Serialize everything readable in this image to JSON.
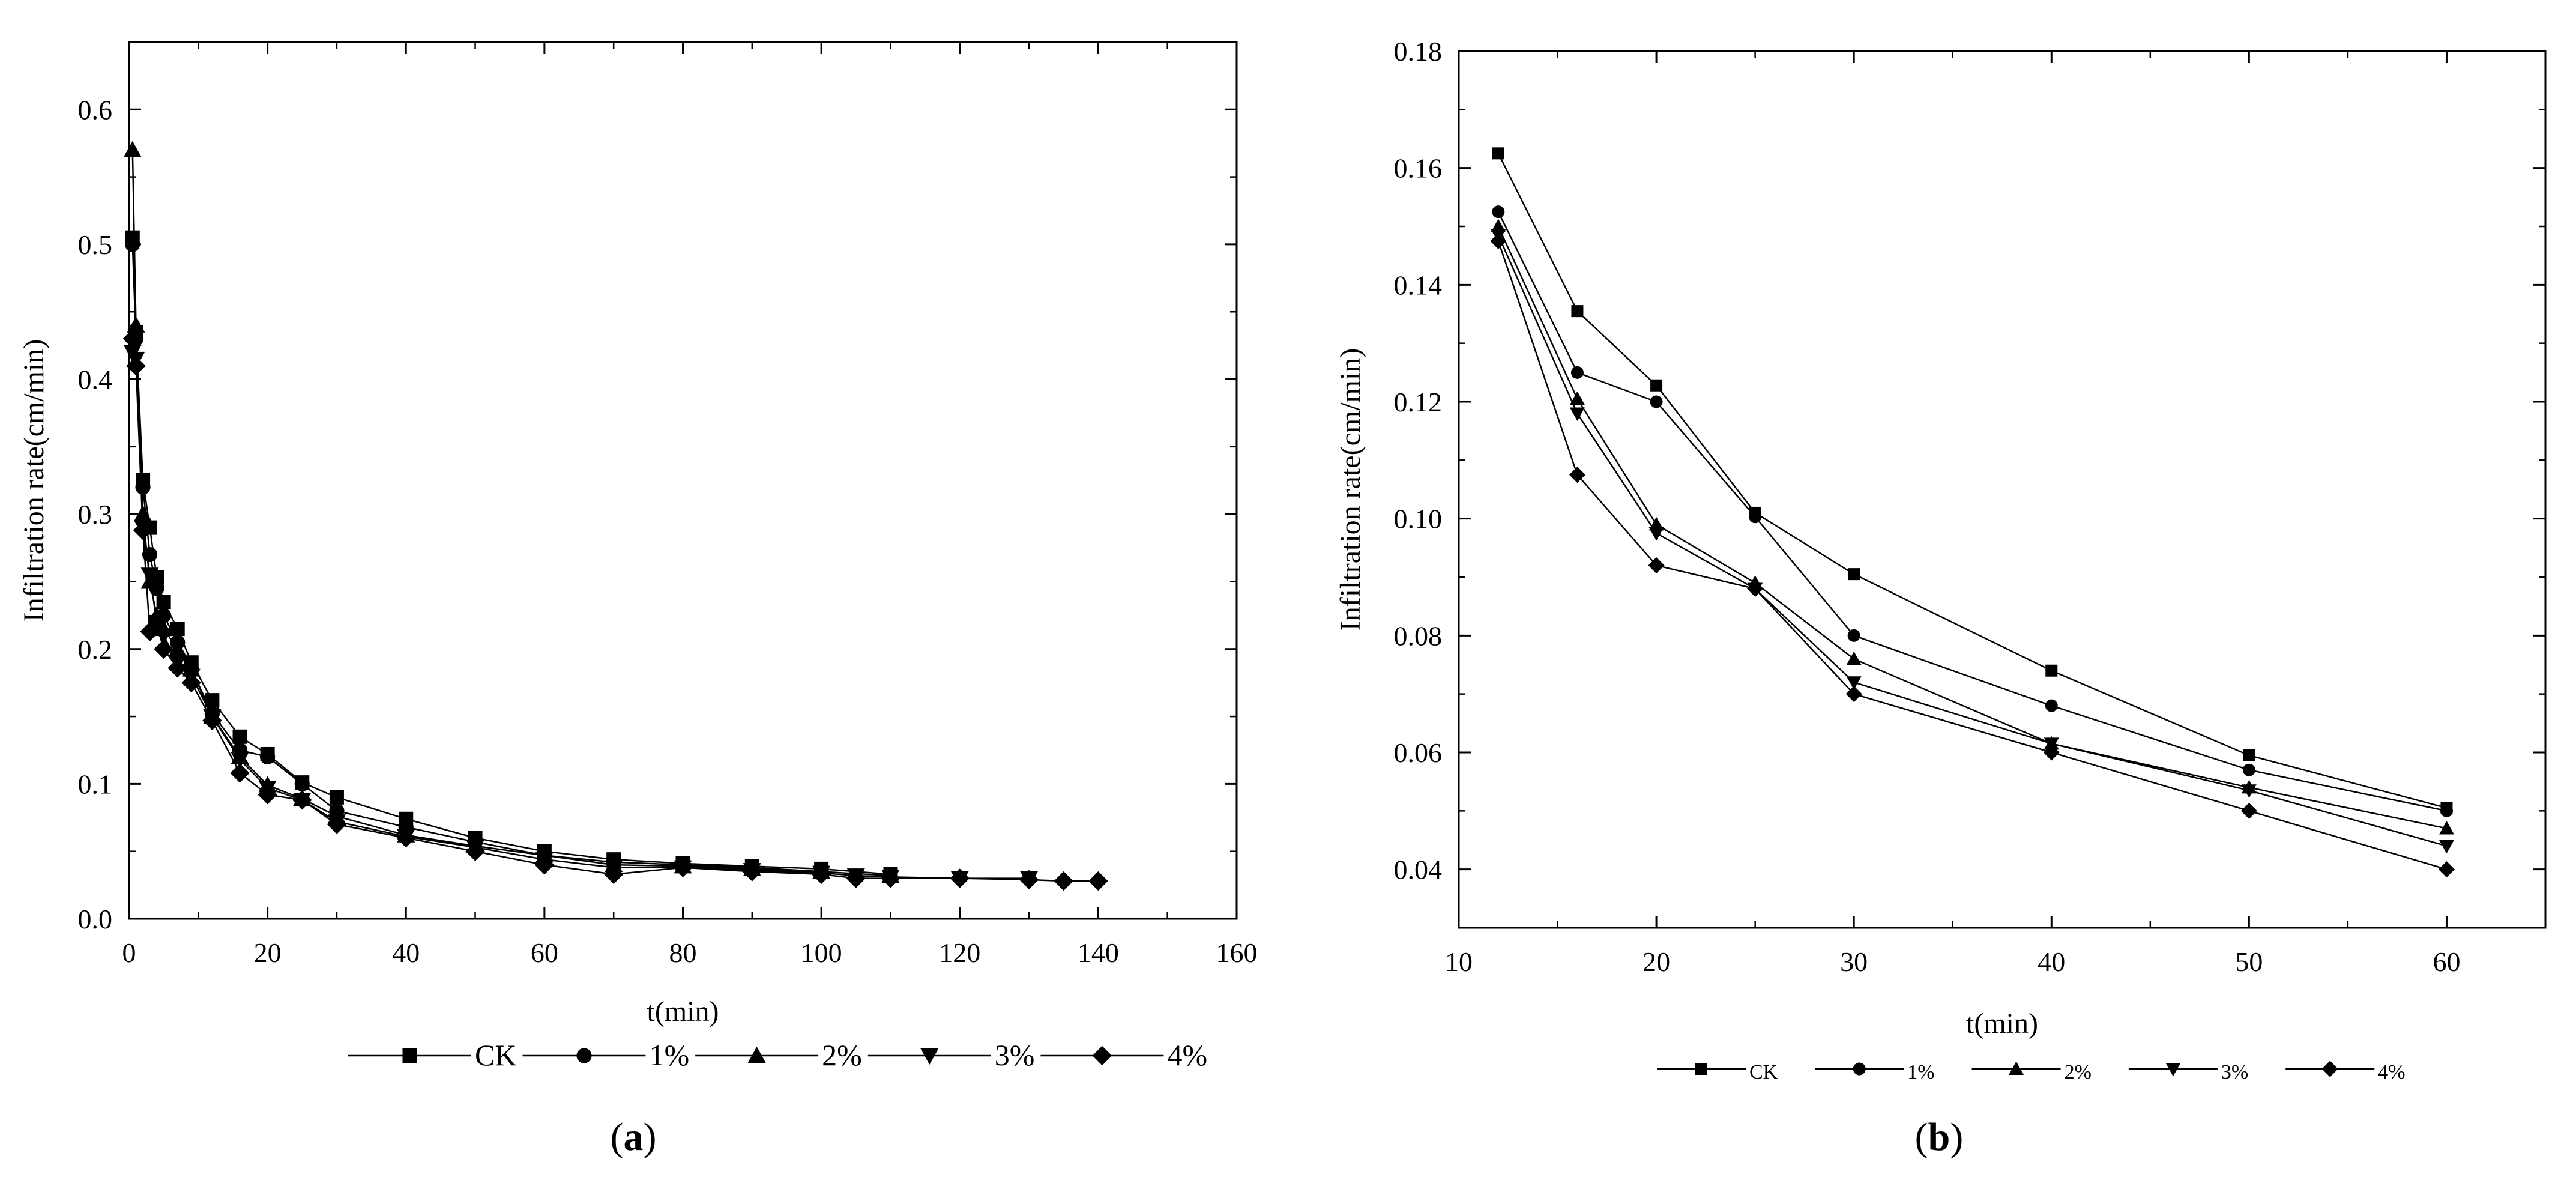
{
  "chart_data": [
    {
      "panel": "(a)",
      "type": "line",
      "xlabel": "t(min)",
      "ylabel": "Infiltration rate(cm/min)",
      "xlim": [
        0,
        160
      ],
      "ylim": [
        0,
        0.65
      ],
      "xticks": [
        "0",
        "20",
        "40",
        "60",
        "80",
        "100",
        "120",
        "140",
        "160"
      ],
      "yticks": [
        "0.0",
        "0.1",
        "0.2",
        "0.3",
        "0.4",
        "0.5",
        "0.6"
      ],
      "legend_position": "bottom",
      "series": [
        {
          "name": "CK",
          "marker": "square",
          "x": [
            0.5,
            1,
            2,
            3,
            4,
            5,
            7,
            9,
            12,
            16,
            20,
            25,
            30,
            40,
            50,
            60,
            70,
            80,
            90,
            100,
            110
          ],
          "y": [
            0.505,
            0.435,
            0.325,
            0.29,
            0.253,
            0.235,
            0.215,
            0.19,
            0.162,
            0.135,
            0.122,
            0.101,
            0.09,
            0.074,
            0.06,
            0.05,
            0.044,
            0.041,
            0.039,
            0.037,
            0.033
          ]
        },
        {
          "name": "1%",
          "marker": "circle",
          "x": [
            0.5,
            1,
            2,
            3,
            4,
            5,
            7,
            9,
            12,
            16,
            20,
            25,
            30,
            40,
            50,
            60,
            70,
            80,
            90,
            100
          ],
          "y": [
            0.5,
            0.43,
            0.32,
            0.27,
            0.245,
            0.225,
            0.205,
            0.185,
            0.152,
            0.125,
            0.12,
            0.1,
            0.08,
            0.068,
            0.057,
            0.047,
            0.042,
            0.04,
            0.038,
            0.035
          ]
        },
        {
          "name": "2%",
          "marker": "triangle-up",
          "x": [
            0.5,
            1,
            2,
            3,
            4,
            5,
            7,
            9,
            12,
            16,
            20,
            25,
            30,
            40,
            50,
            60,
            70,
            80,
            90,
            100,
            110
          ],
          "y": [
            0.57,
            0.44,
            0.3,
            0.25,
            0.225,
            0.215,
            0.2,
            0.185,
            0.15,
            0.12,
            0.099,
            0.089,
            0.076,
            0.062,
            0.054,
            0.047,
            0.04,
            0.039,
            0.037,
            0.035,
            0.032
          ]
        },
        {
          "name": "3%",
          "marker": "triangle-down",
          "x": [
            0.5,
            1,
            2,
            3,
            4,
            5,
            7,
            9,
            12,
            16,
            20,
            25,
            30,
            40,
            50,
            60,
            70,
            80,
            90,
            100,
            105,
            110,
            120,
            130
          ],
          "y": [
            0.42,
            0.415,
            0.29,
            0.255,
            0.22,
            0.21,
            0.19,
            0.18,
            0.15,
            0.118,
            0.097,
            0.088,
            0.072,
            0.061,
            0.053,
            0.044,
            0.038,
            0.038,
            0.036,
            0.034,
            0.032,
            0.031,
            0.03,
            0.03
          ]
        },
        {
          "name": "4%",
          "marker": "diamond",
          "x": [
            0.5,
            1,
            2,
            3,
            4,
            5,
            7,
            9,
            12,
            16,
            20,
            25,
            30,
            40,
            50,
            60,
            70,
            80,
            90,
            100,
            105,
            110,
            120,
            130,
            135,
            140
          ],
          "y": [
            0.43,
            0.41,
            0.288,
            0.213,
            0.218,
            0.2,
            0.186,
            0.175,
            0.147,
            0.108,
            0.092,
            0.088,
            0.07,
            0.06,
            0.05,
            0.04,
            0.033,
            0.038,
            0.035,
            0.033,
            0.03,
            0.03,
            0.03,
            0.029,
            0.028,
            0.028
          ]
        }
      ]
    },
    {
      "panel": "(b)",
      "type": "line",
      "xlabel": "t(min)",
      "ylabel": "Infiltration rate(cm/min)",
      "xlim": [
        10,
        65
      ],
      "ylim": [
        0.03,
        0.18
      ],
      "xticks": [
        "10",
        "20",
        "30",
        "40",
        "50",
        "60"
      ],
      "yticks": [
        "0.04",
        "0.06",
        "0.08",
        "0.10",
        "0.12",
        "0.14",
        "0.16",
        "0.18"
      ],
      "legend_position": "bottom",
      "series": [
        {
          "name": "CK",
          "marker": "square",
          "x": [
            12,
            16,
            20,
            25,
            30,
            40,
            50,
            60
          ],
          "y": [
            0.1625,
            0.1355,
            0.1228,
            0.101,
            0.0905,
            0.074,
            0.0595,
            0.0505
          ]
        },
        {
          "name": "1%",
          "marker": "circle",
          "x": [
            12,
            16,
            20,
            25,
            30,
            40,
            50,
            60
          ],
          "y": [
            0.1525,
            0.125,
            0.12,
            0.1003,
            0.08,
            0.068,
            0.057,
            0.05
          ]
        },
        {
          "name": "2%",
          "marker": "triangle-up",
          "x": [
            12,
            16,
            20,
            25,
            30,
            40,
            50,
            60
          ],
          "y": [
            0.15,
            0.1205,
            0.099,
            0.089,
            0.076,
            0.0615,
            0.054,
            0.047
          ]
        },
        {
          "name": "3%",
          "marker": "triangle-down",
          "x": [
            12,
            16,
            20,
            25,
            30,
            40,
            50,
            60
          ],
          "y": [
            0.1485,
            0.118,
            0.0975,
            0.088,
            0.072,
            0.0615,
            0.0535,
            0.044
          ]
        },
        {
          "name": "4%",
          "marker": "diamond",
          "x": [
            12,
            16,
            20,
            25,
            30,
            40,
            50,
            60
          ],
          "y": [
            0.1475,
            0.1075,
            0.092,
            0.088,
            0.07,
            0.06,
            0.05,
            0.04
          ]
        }
      ]
    }
  ]
}
